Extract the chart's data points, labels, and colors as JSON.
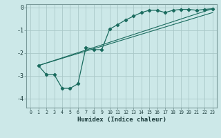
{
  "xlabel": "Humidex (Indice chaleur)",
  "ylabel": "",
  "bg_color": "#cce8e8",
  "line_color": "#1a6b5e",
  "grid_color": "#aac8c8",
  "xlim": [
    -0.5,
    23.5
  ],
  "ylim": [
    -4.4,
    0.15
  ],
  "yticks": [
    0,
    -1,
    -2,
    -3,
    -4
  ],
  "xtick_labels": [
    "0",
    "1",
    "2",
    "3",
    "4",
    "5",
    "6",
    "7",
    "8",
    "9",
    "10",
    "11",
    "12",
    "13",
    "14",
    "15",
    "16",
    "17",
    "18",
    "19",
    "20",
    "21",
    "22",
    "23"
  ],
  "xtick_pos": [
    0,
    1,
    2,
    3,
    4,
    5,
    6,
    7,
    8,
    9,
    10,
    11,
    12,
    13,
    14,
    15,
    16,
    17,
    18,
    19,
    20,
    21,
    22,
    23
  ],
  "main_x": [
    1,
    2,
    3,
    4,
    5,
    6,
    7,
    8,
    9,
    10,
    11,
    12,
    13,
    14,
    15,
    16,
    17,
    18,
    19,
    20,
    21,
    22,
    23
  ],
  "main_y": [
    -2.55,
    -2.95,
    -2.95,
    -3.55,
    -3.55,
    -3.35,
    -1.75,
    -1.85,
    -1.85,
    -0.95,
    -0.75,
    -0.55,
    -0.38,
    -0.22,
    -0.12,
    -0.12,
    -0.22,
    -0.12,
    -0.08,
    -0.08,
    -0.12,
    -0.08,
    -0.05
  ],
  "line2_x": [
    1,
    23
  ],
  "line2_y": [
    -2.55,
    -0.05
  ],
  "line3_x": [
    1,
    23
  ],
  "line3_y": [
    -2.55,
    -0.22
  ]
}
